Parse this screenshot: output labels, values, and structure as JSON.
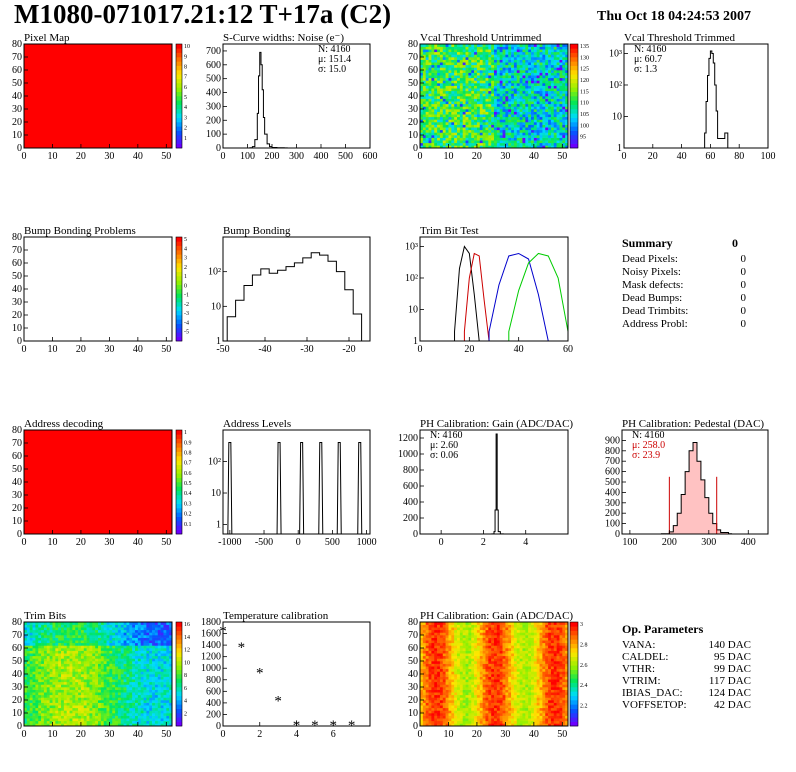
{
  "header": {
    "title": "M1080-071017.21:12 T+17a (C2)",
    "timestamp": "Thu Oct 18 04:24:53 2007"
  },
  "colors": {
    "map_red": "#ff0000",
    "noise_red": "#cc0000",
    "palette_low": "#6a00ff",
    "palette_high": "#ff0000"
  },
  "summary": {
    "title": "Summary",
    "total": "0",
    "rows": [
      {
        "label": "Dead Pixels:",
        "value": "0"
      },
      {
        "label": "Noisy Pixels:",
        "value": "0"
      },
      {
        "label": "Mask defects:",
        "value": "0"
      },
      {
        "label": "Dead Bumps:",
        "value": "0"
      },
      {
        "label": "Dead Trimbits:",
        "value": "0"
      },
      {
        "label": "Address Probl:",
        "value": "0"
      }
    ]
  },
  "op_params": {
    "title": "Op. Parameters",
    "rows": [
      {
        "label": "VANA:",
        "value": "140 DAC"
      },
      {
        "label": "CALDEL:",
        "value": "95 DAC"
      },
      {
        "label": "VTHR:",
        "value": "99 DAC"
      },
      {
        "label": "VTRIM:",
        "value": "117 DAC"
      },
      {
        "label": "IBIAS_DAC:",
        "value": "124 DAC"
      },
      {
        "label": "VOFFSETOP:",
        "value": "42 DAC"
      }
    ]
  },
  "chart_data": [
    {
      "id": "pixel_map",
      "type": "heatmap",
      "title": "Pixel Map",
      "xlim": [
        0,
        52
      ],
      "ylim": [
        0,
        80
      ],
      "xticks": [
        "0",
        "10",
        "20",
        "30",
        "40",
        "50"
      ],
      "yticks": [
        "0",
        "10",
        "20",
        "30",
        "40",
        "50",
        "60",
        "70",
        "80"
      ],
      "fill": "uniform-max",
      "colorbar": [
        "1",
        "2",
        "3",
        "4",
        "5",
        "6",
        "7",
        "8",
        "9",
        "10"
      ]
    },
    {
      "id": "scurve",
      "type": "bar",
      "title": "S-Curve widths: Noise (e⁻)",
      "xlim": [
        0,
        600
      ],
      "ylim": [
        0,
        750
      ],
      "xticks": [
        "0",
        "100",
        "200",
        "300",
        "400",
        "500",
        "600"
      ],
      "yticks": [
        "0",
        "100",
        "200",
        "300",
        "400",
        "500",
        "600",
        "700"
      ],
      "stats": [
        "N: 4160",
        "μ: 151.4",
        "σ: 15.0"
      ],
      "x": [
        110,
        120,
        130,
        140,
        145,
        150,
        155,
        160,
        165,
        170,
        180,
        190,
        200,
        220,
        250
      ],
      "values": [
        2,
        10,
        60,
        250,
        520,
        690,
        600,
        420,
        220,
        100,
        30,
        10,
        4,
        2,
        1
      ]
    },
    {
      "id": "vcal_untrimmed",
      "type": "heatmap",
      "title": "Vcal Threshold Untrimmed",
      "xlim": [
        0,
        52
      ],
      "ylim": [
        0,
        80
      ],
      "xticks": [
        "0",
        "10",
        "20",
        "30",
        "40",
        "50"
      ],
      "yticks": [
        "0",
        "10",
        "20",
        "30",
        "40",
        "50",
        "60",
        "70",
        "80"
      ],
      "colorbar": [
        "95",
        "100",
        "105",
        "110",
        "115",
        "120",
        "125",
        "130",
        "135"
      ]
    },
    {
      "id": "vcal_trimmed",
      "type": "bar",
      "title": "Vcal Threshold Trimmed",
      "log": true,
      "xlim": [
        0,
        100
      ],
      "ylim": [
        1,
        2000
      ],
      "xticks": [
        "0",
        "20",
        "40",
        "60",
        "80",
        "100"
      ],
      "yticks": [
        "1",
        "10",
        "10²",
        "10³"
      ],
      "stats": [
        "N: 4160",
        "μ: 60.7",
        "σ:  1.3"
      ],
      "x": [
        56,
        57,
        58,
        59,
        60,
        61,
        62,
        63,
        64,
        65,
        70
      ],
      "values": [
        3,
        30,
        200,
        700,
        1200,
        1000,
        500,
        100,
        15,
        2,
        3
      ]
    },
    {
      "id": "bump_problems",
      "type": "heatmap",
      "title": "Bump Bonding Problems",
      "xlim": [
        0,
        52
      ],
      "ylim": [
        0,
        80
      ],
      "xticks": [
        "0",
        "10",
        "20",
        "30",
        "40",
        "50"
      ],
      "yticks": [
        "0",
        "10",
        "20",
        "30",
        "40",
        "50",
        "60",
        "70",
        "80"
      ],
      "fill": "empty",
      "colorbar": [
        "-5",
        "-4",
        "-3",
        "-2",
        "-1",
        "0",
        "1",
        "2",
        "3",
        "4",
        "5"
      ]
    },
    {
      "id": "bump_bonding",
      "type": "bar",
      "title": "Bump Bonding",
      "log": true,
      "xlim": [
        -50,
        -15
      ],
      "ylim": [
        1,
        1000
      ],
      "xticks": [
        "-50",
        "-40",
        "-30",
        "-20"
      ],
      "yticks": [
        "1",
        "10",
        "10²"
      ],
      "x": [
        -49,
        -47,
        -45,
        -43,
        -41,
        -39,
        -37,
        -35,
        -33,
        -31,
        -29,
        -27,
        -25,
        -23,
        -21,
        -19,
        -17
      ],
      "values": [
        5,
        15,
        40,
        80,
        120,
        90,
        110,
        140,
        180,
        250,
        350,
        300,
        200,
        100,
        30,
        6,
        1
      ]
    },
    {
      "id": "trim_bit_test",
      "type": "line",
      "title": "Trim Bit Test",
      "log": true,
      "xlim": [
        0,
        60
      ],
      "ylim": [
        1,
        2000
      ],
      "xticks": [
        "0",
        "20",
        "40",
        "60"
      ],
      "yticks": [
        "1",
        "10",
        "10²",
        "10³"
      ],
      "series": [
        {
          "color": "#000000",
          "x": [
            14,
            16,
            18,
            20,
            22,
            24
          ],
          "values": [
            2,
            200,
            1000,
            600,
            30,
            1
          ]
        },
        {
          "color": "#cc0000",
          "x": [
            18,
            20,
            22,
            24,
            26,
            28
          ],
          "values": [
            2,
            100,
            600,
            500,
            20,
            1
          ]
        },
        {
          "color": "#0000cc",
          "x": [
            28,
            32,
            36,
            40,
            44,
            48,
            52
          ],
          "values": [
            2,
            60,
            500,
            600,
            400,
            30,
            1
          ]
        },
        {
          "color": "#00cc00",
          "x": [
            36,
            40,
            44,
            48,
            52,
            56,
            60
          ],
          "values": [
            2,
            40,
            300,
            600,
            500,
            100,
            2
          ]
        }
      ]
    },
    {
      "id": "address_decoding",
      "type": "heatmap",
      "title": "Address decoding",
      "xlim": [
        0,
        52
      ],
      "ylim": [
        0,
        80
      ],
      "xticks": [
        "0",
        "10",
        "20",
        "30",
        "40",
        "50"
      ],
      "yticks": [
        "0",
        "10",
        "20",
        "30",
        "40",
        "50",
        "60",
        "70",
        "80"
      ],
      "fill": "uniform-max",
      "colorbar": [
        "0.1",
        "0.2",
        "0.3",
        "0.4",
        "0.5",
        "0.6",
        "0.7",
        "0.8",
        "0.9",
        "1"
      ]
    },
    {
      "id": "address_levels",
      "type": "bar",
      "title": "Address Levels",
      "log": true,
      "xlim": [
        -1100,
        1050
      ],
      "ylim": [
        0.5,
        1000
      ],
      "xticks": [
        "-1000",
        "-500",
        "0",
        "500",
        "1000"
      ],
      "yticks": [
        "1",
        "10",
        "10²"
      ],
      "peaks": [
        -1000,
        -280,
        50,
        330,
        600,
        900
      ],
      "peak_height": 400
    },
    {
      "id": "ph_gain",
      "type": "bar",
      "title": "PH Calibration: Gain (ADC/DAC)",
      "xlim": [
        -1,
        6
      ],
      "ylim": [
        0,
        1300
      ],
      "xticks": [
        "0",
        "2",
        "4"
      ],
      "yticks": [
        "0",
        "200",
        "400",
        "600",
        "800",
        "1000",
        "1200"
      ],
      "stats": [
        "N: 4160",
        "μ: 2.60",
        "σ: 0.06"
      ],
      "x": [
        2.4,
        2.5,
        2.55,
        2.6,
        2.65,
        2.7,
        2.8
      ],
      "values": [
        2,
        30,
        300,
        1250,
        300,
        30,
        2
      ]
    },
    {
      "id": "ph_pedestal",
      "type": "bar",
      "title": "PH Calibration: Pedestal (DAC)",
      "xlim": [
        80,
        450
      ],
      "ylim": [
        0,
        1000
      ],
      "xticks": [
        "100",
        "200",
        "300",
        "400"
      ],
      "yticks": [
        "0",
        "100",
        "200",
        "300",
        "400",
        "500",
        "600",
        "700",
        "800",
        "900"
      ],
      "stats": [
        "N: 4160",
        "μ: 258.0",
        "σ: 23.9"
      ],
      "x": [
        180,
        200,
        210,
        220,
        230,
        240,
        250,
        260,
        270,
        280,
        290,
        300,
        310,
        320,
        330,
        350
      ],
      "values": [
        2,
        20,
        80,
        200,
        380,
        600,
        800,
        880,
        700,
        520,
        350,
        200,
        100,
        40,
        15,
        3
      ],
      "markers": [
        200,
        320
      ]
    },
    {
      "id": "trim_bits",
      "type": "heatmap",
      "title": "Trim Bits",
      "xlim": [
        0,
        52
      ],
      "ylim": [
        0,
        80
      ],
      "xticks": [
        "0",
        "10",
        "20",
        "30",
        "40",
        "50"
      ],
      "yticks": [
        "0",
        "10",
        "20",
        "30",
        "40",
        "50",
        "60",
        "70",
        "80"
      ],
      "colorbar": [
        "2",
        "4",
        "6",
        "8",
        "10",
        "12",
        "14",
        "16"
      ]
    },
    {
      "id": "temp_calibration",
      "type": "scatter",
      "title": "Temperature calibration",
      "xlim": [
        0,
        8
      ],
      "ylim": [
        0,
        1800
      ],
      "xticks": [
        "0",
        "2",
        "4",
        "6"
      ],
      "yticks": [
        "0",
        "200",
        "400",
        "600",
        "800",
        "1000",
        "1200",
        "1400",
        "1600",
        "1800"
      ],
      "x": [
        0,
        1,
        2,
        3,
        4,
        5,
        6,
        7
      ],
      "values": [
        1650,
        1370,
        930,
        440,
        20,
        20,
        20,
        20
      ]
    },
    {
      "id": "ph_gain_map",
      "type": "heatmap",
      "title": "PH Calibration: Gain (ADC/DAC)",
      "xlim": [
        0,
        52
      ],
      "ylim": [
        0,
        80
      ],
      "xticks": [
        "0",
        "10",
        "20",
        "30",
        "40",
        "50"
      ],
      "yticks": [
        "0",
        "10",
        "20",
        "30",
        "40",
        "50",
        "60",
        "70",
        "80"
      ],
      "colorbar": [
        "2.2",
        "2.4",
        "2.6",
        "2.8",
        "3"
      ]
    }
  ]
}
